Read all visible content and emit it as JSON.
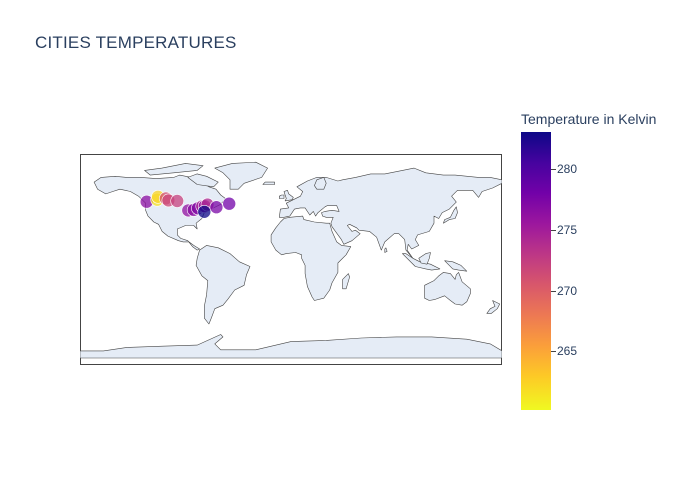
{
  "title": "CITIES TEMPERATURES",
  "colorbar": {
    "title": "Temperature in Kelvin",
    "min": 260.2,
    "max": 283.0,
    "ticks": [
      280,
      275,
      270,
      265
    ],
    "colorscale": [
      "#0d0887",
      "#46039f",
      "#7201a8",
      "#9c179e",
      "#bd3786",
      "#d8576b",
      "#ed7953",
      "#fb9f3a",
      "#fdca26",
      "#f0f921"
    ]
  },
  "map": {
    "projection": "equirectangular",
    "land_color": "#e5ecf6",
    "coast_color": "#444444",
    "frame_color": "#444444"
  },
  "chart_data": {
    "type": "scatter_geo",
    "title": "CITIES TEMPERATURES",
    "color_label": "Temperature in Kelvin",
    "points": [
      {
        "lon": -123.1,
        "lat": 49.3,
        "temp": 276.5
      },
      {
        "lon": -114.1,
        "lat": 51.0,
        "temp": 261.5
      },
      {
        "lon": -113.5,
        "lat": 53.5,
        "temp": 262.2
      },
      {
        "lon": -106.7,
        "lat": 52.1,
        "temp": 271.0
      },
      {
        "lon": -104.6,
        "lat": 50.4,
        "temp": 271.5
      },
      {
        "lon": -97.1,
        "lat": 49.9,
        "temp": 272.0
      },
      {
        "lon": -87.6,
        "lat": 41.9,
        "temp": 276.0
      },
      {
        "lon": -83.0,
        "lat": 42.3,
        "temp": 276.5
      },
      {
        "lon": -79.4,
        "lat": 43.7,
        "temp": 277.0
      },
      {
        "lon": -75.7,
        "lat": 45.4,
        "temp": 274.5
      },
      {
        "lon": -73.6,
        "lat": 45.5,
        "temp": 275.5
      },
      {
        "lon": -71.2,
        "lat": 46.8,
        "temp": 274.0
      },
      {
        "lon": -74.0,
        "lat": 40.7,
        "temp": 283.0
      },
      {
        "lon": -63.6,
        "lat": 44.6,
        "temp": 277.5
      },
      {
        "lon": -52.7,
        "lat": 47.6,
        "temp": 278.0
      }
    ]
  }
}
